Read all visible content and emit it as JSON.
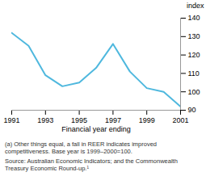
{
  "chart_data": {
    "type": "line",
    "x": [
      1991,
      1992,
      1993,
      1994,
      1995,
      1996,
      1997,
      1998,
      1999,
      2000,
      2001
    ],
    "values": [
      132,
      125,
      109,
      103,
      105,
      113,
      126,
      111,
      102,
      100,
      92
    ],
    "color": "#4fb8de",
    "x_label": "Financial year ending",
    "y_label": "index",
    "xlim": [
      1991,
      2001
    ],
    "xticks": [
      1991,
      1993,
      1995,
      1997,
      1999,
      2001
    ],
    "ylim": [
      90,
      140
    ],
    "yticks": [
      90,
      100,
      110,
      120,
      130,
      140
    ],
    "grid": false,
    "notes": [
      "(a) Other things equal, a fall in REER indicates improved competitiveness. Base year is 1999–2000=100.",
      "Source: Australian Economic Indicators; and the Commonwealth Treasury Economic Round-up.¹"
    ]
  }
}
